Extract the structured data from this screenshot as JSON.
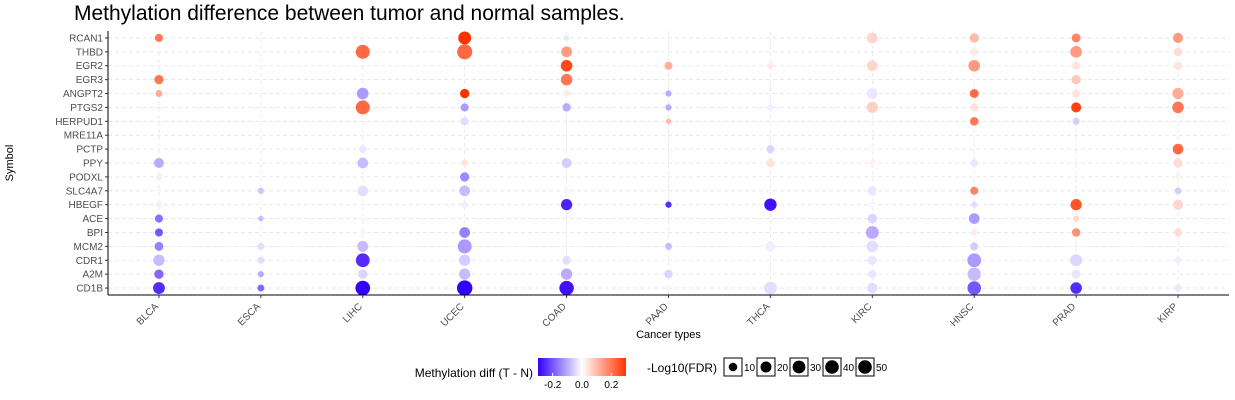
{
  "chart_data": {
    "type": "scatter",
    "title": "Methylation difference between tumor and normal samples.",
    "xlabel": "Cancer types",
    "ylabel": "Symbol",
    "cancers": [
      "BLCA",
      "ESCA",
      "LIHC",
      "UCEC",
      "COAD",
      "PAAD",
      "THCA",
      "KIRC",
      "HNSC",
      "PRAD",
      "KIRP"
    ],
    "genes": [
      "RCAN1",
      "THBD",
      "EGR2",
      "EGR3",
      "ANGPT2",
      "PTGS2",
      "HERPUD1",
      "MRE11A",
      "PCTP",
      "PPY",
      "PODXL",
      "SLC4A7",
      "HBEGF",
      "ACE",
      "BPI",
      "MCM2",
      "CDR1",
      "A2M",
      "CD1B"
    ],
    "grid": true,
    "color_scale": {
      "low": "#3300ff",
      "mid": "#ffffff",
      "high": "#ff3300",
      "domain": [
        -0.3,
        0.3
      ]
    },
    "points": [
      {
        "gene": "RCAN1",
        "cancer": "BLCA",
        "diff": 0.2,
        "fdr": 5
      },
      {
        "gene": "RCAN1",
        "cancer": "UCEC",
        "diff": 0.3,
        "fdr": 20
      },
      {
        "gene": "RCAN1",
        "cancer": "COAD",
        "diff": -0.03,
        "fdr": 1
      },
      {
        "gene": "RCAN1",
        "cancer": "KIRC",
        "diff": 0.06,
        "fdr": 12
      },
      {
        "gene": "RCAN1",
        "cancer": "HNSC",
        "diff": 0.1,
        "fdr": 8
      },
      {
        "gene": "RCAN1",
        "cancer": "PRAD",
        "diff": 0.18,
        "fdr": 7
      },
      {
        "gene": "RCAN1",
        "cancer": "KIRP",
        "diff": 0.15,
        "fdr": 10
      },
      {
        "gene": "THBD",
        "cancer": "LIHC",
        "diff": 0.22,
        "fdr": 25
      },
      {
        "gene": "THBD",
        "cancer": "UCEC",
        "diff": 0.22,
        "fdr": 30
      },
      {
        "gene": "THBD",
        "cancer": "COAD",
        "diff": 0.15,
        "fdr": 12
      },
      {
        "gene": "THBD",
        "cancer": "HNSC",
        "diff": 0.03,
        "fdr": 5
      },
      {
        "gene": "THBD",
        "cancer": "PRAD",
        "diff": 0.15,
        "fdr": 15
      },
      {
        "gene": "THBD",
        "cancer": "KIRP",
        "diff": 0.05,
        "fdr": 6
      },
      {
        "gene": "EGR2",
        "cancer": "COAD",
        "diff": 0.27,
        "fdr": 15
      },
      {
        "gene": "EGR2",
        "cancer": "PAAD",
        "diff": 0.12,
        "fdr": 5
      },
      {
        "gene": "EGR2",
        "cancer": "THCA",
        "diff": 0.03,
        "fdr": 2
      },
      {
        "gene": "EGR2",
        "cancer": "KIRC",
        "diff": 0.06,
        "fdr": 12
      },
      {
        "gene": "EGR2",
        "cancer": "HNSC",
        "diff": 0.15,
        "fdr": 15
      },
      {
        "gene": "EGR2",
        "cancer": "PRAD",
        "diff": 0.04,
        "fdr": 5
      },
      {
        "gene": "EGR2",
        "cancer": "KIRP",
        "diff": 0.04,
        "fdr": 5
      },
      {
        "gene": "EGR3",
        "cancer": "BLCA",
        "diff": 0.2,
        "fdr": 8
      },
      {
        "gene": "EGR3",
        "cancer": "COAD",
        "diff": 0.2,
        "fdr": 15
      },
      {
        "gene": "EGR3",
        "cancer": "PRAD",
        "diff": 0.08,
        "fdr": 8
      },
      {
        "gene": "ANGPT2",
        "cancer": "BLCA",
        "diff": 0.12,
        "fdr": 3
      },
      {
        "gene": "ANGPT2",
        "cancer": "LIHC",
        "diff": -0.12,
        "fdr": 15
      },
      {
        "gene": "ANGPT2",
        "cancer": "UCEC",
        "diff": 0.3,
        "fdr": 8
      },
      {
        "gene": "ANGPT2",
        "cancer": "COAD",
        "diff": 0.03,
        "fdr": 2
      },
      {
        "gene": "ANGPT2",
        "cancer": "PAAD",
        "diff": -0.1,
        "fdr": 2
      },
      {
        "gene": "ANGPT2",
        "cancer": "KIRC",
        "diff": -0.03,
        "fdr": 12
      },
      {
        "gene": "ANGPT2",
        "cancer": "HNSC",
        "diff": 0.22,
        "fdr": 7
      },
      {
        "gene": "ANGPT2",
        "cancer": "PRAD",
        "diff": 0.04,
        "fdr": 5
      },
      {
        "gene": "ANGPT2",
        "cancer": "KIRP",
        "diff": 0.12,
        "fdr": 14
      },
      {
        "gene": "PTGS2",
        "cancer": "LIHC",
        "diff": 0.22,
        "fdr": 25
      },
      {
        "gene": "PTGS2",
        "cancer": "UCEC",
        "diff": -0.12,
        "fdr": 5
      },
      {
        "gene": "PTGS2",
        "cancer": "COAD",
        "diff": -0.1,
        "fdr": 6
      },
      {
        "gene": "PTGS2",
        "cancer": "PAAD",
        "diff": -0.1,
        "fdr": 2
      },
      {
        "gene": "PTGS2",
        "cancer": "THCA",
        "diff": -0.02,
        "fdr": 2
      },
      {
        "gene": "PTGS2",
        "cancer": "KIRC",
        "diff": 0.07,
        "fdr": 14
      },
      {
        "gene": "PTGS2",
        "cancer": "HNSC",
        "diff": 0.04,
        "fdr": 5
      },
      {
        "gene": "PTGS2",
        "cancer": "PRAD",
        "diff": 0.28,
        "fdr": 10
      },
      {
        "gene": "PTGS2",
        "cancer": "KIRP",
        "diff": 0.2,
        "fdr": 15
      },
      {
        "gene": "HERPUD1",
        "cancer": "UCEC",
        "diff": -0.04,
        "fdr": 5
      },
      {
        "gene": "HERPUD1",
        "cancer": "PAAD",
        "diff": 0.1,
        "fdr": 1
      },
      {
        "gene": "HERPUD1",
        "cancer": "HNSC",
        "diff": 0.2,
        "fdr": 6
      },
      {
        "gene": "HERPUD1",
        "cancer": "PRAD",
        "diff": -0.06,
        "fdr": 3
      },
      {
        "gene": "PCTP",
        "cancer": "LIHC",
        "diff": -0.03,
        "fdr": 4
      },
      {
        "gene": "PCTP",
        "cancer": "THCA",
        "diff": -0.05,
        "fdr": 5
      },
      {
        "gene": "PCTP",
        "cancer": "KIRC",
        "diff": 0.01,
        "fdr": 1
      },
      {
        "gene": "PCTP",
        "cancer": "KIRP",
        "diff": 0.22,
        "fdr": 12
      },
      {
        "gene": "PPY",
        "cancer": "BLCA",
        "diff": -0.1,
        "fdr": 10
      },
      {
        "gene": "PPY",
        "cancer": "LIHC",
        "diff": -0.08,
        "fdr": 12
      },
      {
        "gene": "PPY",
        "cancer": "UCEC",
        "diff": 0.04,
        "fdr": 2
      },
      {
        "gene": "PPY",
        "cancer": "COAD",
        "diff": -0.06,
        "fdr": 10
      },
      {
        "gene": "PPY",
        "cancer": "THCA",
        "diff": 0.04,
        "fdr": 6
      },
      {
        "gene": "PPY",
        "cancer": "KIRC",
        "diff": 0.02,
        "fdr": 3
      },
      {
        "gene": "PPY",
        "cancer": "HNSC",
        "diff": -0.03,
        "fdr": 4
      },
      {
        "gene": "PPY",
        "cancer": "KIRP",
        "diff": 0.05,
        "fdr": 8
      },
      {
        "gene": "PODXL",
        "cancer": "BLCA",
        "diff": -0.02,
        "fdr": 2
      },
      {
        "gene": "PODXL",
        "cancer": "UCEC",
        "diff": -0.14,
        "fdr": 8
      },
      {
        "gene": "PODXL",
        "cancer": "KIRP",
        "diff": 0.02,
        "fdr": 2
      },
      {
        "gene": "SLC4A7",
        "cancer": "ESCA",
        "diff": -0.07,
        "fdr": 2
      },
      {
        "gene": "SLC4A7",
        "cancer": "LIHC",
        "diff": -0.04,
        "fdr": 12
      },
      {
        "gene": "SLC4A7",
        "cancer": "UCEC",
        "diff": -0.08,
        "fdr": 12
      },
      {
        "gene": "SLC4A7",
        "cancer": "COAD",
        "diff": -0.01,
        "fdr": 3
      },
      {
        "gene": "SLC4A7",
        "cancer": "KIRC",
        "diff": -0.03,
        "fdr": 7
      },
      {
        "gene": "SLC4A7",
        "cancer": "HNSC",
        "diff": 0.18,
        "fdr": 5
      },
      {
        "gene": "SLC4A7",
        "cancer": "KIRP",
        "diff": -0.06,
        "fdr": 3
      },
      {
        "gene": "HBEGF",
        "cancer": "BLCA",
        "diff": 0.03,
        "fdr": 1
      },
      {
        "gene": "HBEGF",
        "cancer": "UCEC",
        "diff": -0.02,
        "fdr": 3
      },
      {
        "gene": "HBEGF",
        "cancer": "COAD",
        "diff": -0.26,
        "fdr": 14
      },
      {
        "gene": "HBEGF",
        "cancer": "PAAD",
        "diff": -0.25,
        "fdr": 2
      },
      {
        "gene": "HBEGF",
        "cancer": "THCA",
        "diff": -0.28,
        "fdr": 18
      },
      {
        "gene": "HBEGF",
        "cancer": "KIRC",
        "diff": -0.01,
        "fdr": 2
      },
      {
        "gene": "HBEGF",
        "cancer": "HNSC",
        "diff": -0.04,
        "fdr": 2
      },
      {
        "gene": "HBEGF",
        "cancer": "PRAD",
        "diff": 0.25,
        "fdr": 14
      },
      {
        "gene": "HBEGF",
        "cancer": "KIRP",
        "diff": 0.06,
        "fdr": 10
      },
      {
        "gene": "ACE",
        "cancer": "BLCA",
        "diff": -0.17,
        "fdr": 5
      },
      {
        "gene": "ACE",
        "cancer": "ESCA",
        "diff": -0.08,
        "fdr": 1
      },
      {
        "gene": "ACE",
        "cancer": "LIHC",
        "diff": 0.01,
        "fdr": 4
      },
      {
        "gene": "ACE",
        "cancer": "KIRC",
        "diff": -0.05,
        "fdr": 9
      },
      {
        "gene": "ACE",
        "cancer": "HNSC",
        "diff": -0.12,
        "fdr": 12
      },
      {
        "gene": "ACE",
        "cancer": "PRAD",
        "diff": 0.06,
        "fdr": 2
      },
      {
        "gene": "BPI",
        "cancer": "BLCA",
        "diff": -0.2,
        "fdr": 5
      },
      {
        "gene": "BPI",
        "cancer": "LIHC",
        "diff": -0.01,
        "fdr": 3
      },
      {
        "gene": "BPI",
        "cancer": "UCEC",
        "diff": -0.15,
        "fdr": 12
      },
      {
        "gene": "BPI",
        "cancer": "KIRC",
        "diff": -0.1,
        "fdr": 20
      },
      {
        "gene": "BPI",
        "cancer": "HNSC",
        "diff": 0.03,
        "fdr": 2
      },
      {
        "gene": "BPI",
        "cancer": "PRAD",
        "diff": 0.16,
        "fdr": 6
      },
      {
        "gene": "BPI",
        "cancer": "KIRP",
        "diff": 0.05,
        "fdr": 5
      },
      {
        "gene": "MCM2",
        "cancer": "BLCA",
        "diff": -0.15,
        "fdr": 7
      },
      {
        "gene": "MCM2",
        "cancer": "ESCA",
        "diff": -0.04,
        "fdr": 3
      },
      {
        "gene": "MCM2",
        "cancer": "LIHC",
        "diff": -0.08,
        "fdr": 13
      },
      {
        "gene": "MCM2",
        "cancer": "UCEC",
        "diff": -0.12,
        "fdr": 25
      },
      {
        "gene": "MCM2",
        "cancer": "PAAD",
        "diff": -0.08,
        "fdr": 3
      },
      {
        "gene": "MCM2",
        "cancer": "THCA",
        "diff": -0.02,
        "fdr": 10
      },
      {
        "gene": "MCM2",
        "cancer": "KIRC",
        "diff": -0.04,
        "fdr": 15
      },
      {
        "gene": "MCM2",
        "cancer": "HNSC",
        "diff": -0.06,
        "fdr": 5
      },
      {
        "gene": "CDR1",
        "cancer": "BLCA",
        "diff": -0.08,
        "fdr": 14
      },
      {
        "gene": "CDR1",
        "cancer": "ESCA",
        "diff": -0.04,
        "fdr": 3
      },
      {
        "gene": "CDR1",
        "cancer": "LIHC",
        "diff": -0.25,
        "fdr": 24
      },
      {
        "gene": "CDR1",
        "cancer": "UCEC",
        "diff": -0.06,
        "fdr": 14
      },
      {
        "gene": "CDR1",
        "cancer": "COAD",
        "diff": -0.04,
        "fdr": 6
      },
      {
        "gene": "CDR1",
        "cancer": "KIRC",
        "diff": -0.03,
        "fdr": 8
      },
      {
        "gene": "CDR1",
        "cancer": "HNSC",
        "diff": -0.12,
        "fdr": 24
      },
      {
        "gene": "CDR1",
        "cancer": "PRAD",
        "diff": -0.05,
        "fdr": 17
      },
      {
        "gene": "CDR1",
        "cancer": "KIRP",
        "diff": -0.02,
        "fdr": 3
      },
      {
        "gene": "A2M",
        "cancer": "BLCA",
        "diff": -0.18,
        "fdr": 8
      },
      {
        "gene": "A2M",
        "cancer": "ESCA",
        "diff": -0.1,
        "fdr": 2
      },
      {
        "gene": "A2M",
        "cancer": "LIHC",
        "diff": -0.05,
        "fdr": 8
      },
      {
        "gene": "A2M",
        "cancer": "UCEC",
        "diff": -0.08,
        "fdr": 14
      },
      {
        "gene": "A2M",
        "cancer": "COAD",
        "diff": -0.1,
        "fdr": 14
      },
      {
        "gene": "A2M",
        "cancer": "PAAD",
        "diff": -0.05,
        "fdr": 6
      },
      {
        "gene": "A2M",
        "cancer": "KIRC",
        "diff": -0.03,
        "fdr": 6
      },
      {
        "gene": "A2M",
        "cancer": "HNSC",
        "diff": -0.08,
        "fdr": 22
      },
      {
        "gene": "A2M",
        "cancer": "PRAD",
        "diff": -0.03,
        "fdr": 7
      },
      {
        "gene": "CD1B",
        "cancer": "BLCA",
        "diff": -0.25,
        "fdr": 16
      },
      {
        "gene": "CD1B",
        "cancer": "ESCA",
        "diff": -0.18,
        "fdr": 3
      },
      {
        "gene": "CD1B",
        "cancer": "LIHC",
        "diff": -0.3,
        "fdr": 28
      },
      {
        "gene": "CD1B",
        "cancer": "UCEC",
        "diff": -0.3,
        "fdr": 32
      },
      {
        "gene": "CD1B",
        "cancer": "COAD",
        "diff": -0.28,
        "fdr": 27
      },
      {
        "gene": "CD1B",
        "cancer": "PAAD",
        "diff": -0.01,
        "fdr": 1
      },
      {
        "gene": "CD1B",
        "cancer": "THCA",
        "diff": -0.04,
        "fdr": 20
      },
      {
        "gene": "CD1B",
        "cancer": "KIRC",
        "diff": -0.04,
        "fdr": 11
      },
      {
        "gene": "CD1B",
        "cancer": "HNSC",
        "diff": -0.2,
        "fdr": 23
      },
      {
        "gene": "CD1B",
        "cancer": "PRAD",
        "diff": -0.25,
        "fdr": 15
      },
      {
        "gene": "CD1B",
        "cancer": "KIRP",
        "diff": -0.03,
        "fdr": 3
      }
    ],
    "legend": {
      "color_title": "Methylation diff (T - N)",
      "color_ticks": [
        {
          "label": "-0.2",
          "value": -0.2
        },
        {
          "label": "0.0",
          "value": 0.0
        },
        {
          "label": "0.2",
          "value": 0.2
        }
      ],
      "size_title": "-Log10(FDR)",
      "size_levels": [
        10,
        20,
        30,
        40,
        50
      ],
      "placement": "bottom"
    }
  }
}
